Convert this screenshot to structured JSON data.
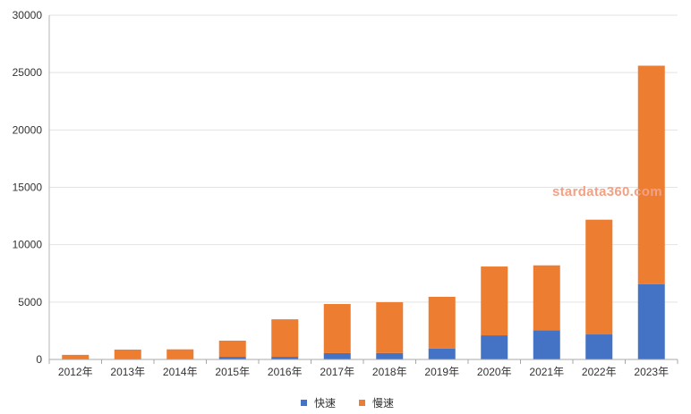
{
  "chart_data": {
    "type": "bar",
    "stacked": true,
    "categories": [
      "2012年",
      "2013年",
      "2014年",
      "2015年",
      "2016年",
      "2017年",
      "2018年",
      "2019年",
      "2020年",
      "2021年",
      "2022年",
      "2023年"
    ],
    "series": [
      {
        "name": "快速",
        "color": "#4472C4",
        "values": [
          20,
          30,
          40,
          230,
          230,
          550,
          560,
          940,
          2100,
          2550,
          2180,
          6550
        ]
      },
      {
        "name": "慢速",
        "color": "#ED7D31",
        "values": [
          380,
          830,
          840,
          1410,
          3270,
          4280,
          4430,
          4520,
          6000,
          5650,
          10000,
          19050
        ]
      }
    ],
    "ylim": [
      0,
      30000
    ],
    "yticks": [
      0,
      5000,
      10000,
      15000,
      20000,
      25000,
      30000
    ],
    "grid": true,
    "legend": "bottom"
  },
  "watermark": {
    "text": "stardata360.com",
    "color": "#F2A185"
  }
}
